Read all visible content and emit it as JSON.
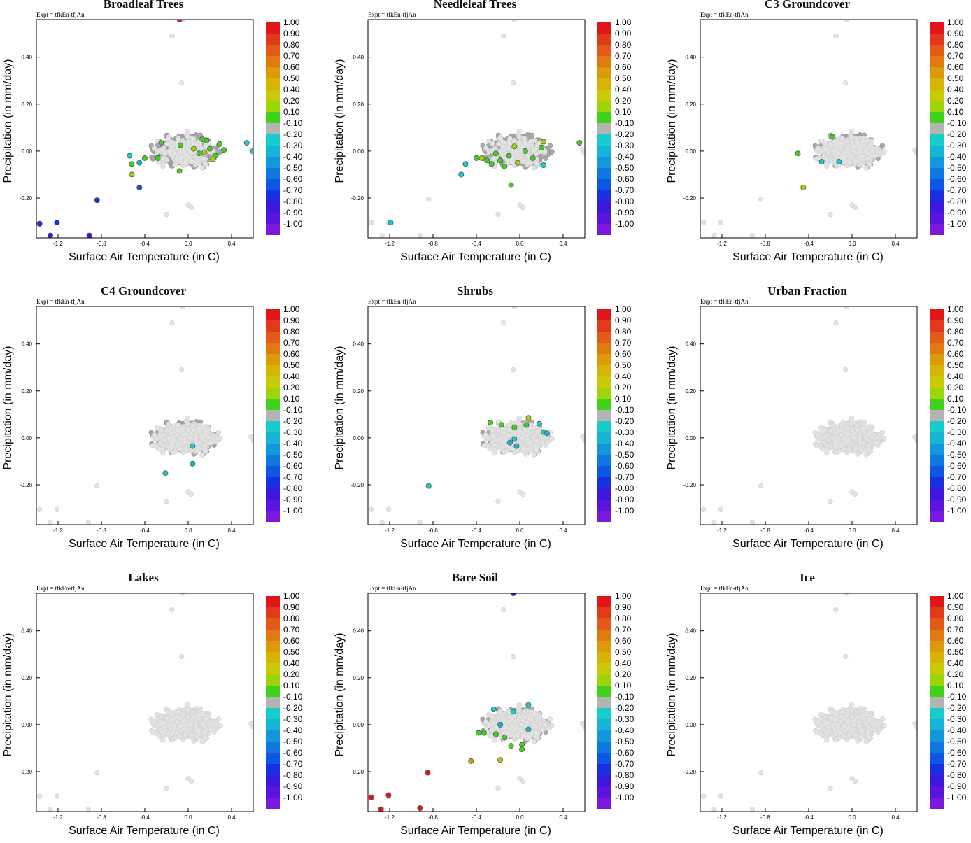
{
  "expt_label": "Expt = tfkEn-tfjAn",
  "xlabel": "Surface Air Temperature (in C)",
  "ylabel": "Precipitation (in mm/day)",
  "colorbar": {
    "labels": [
      "1.00",
      "0.90",
      "0.80",
      "0.70",
      "0.60",
      "0.50",
      "0.40",
      "0.20",
      "0.10",
      "-0.10",
      "-0.20",
      "-0.30",
      "-0.40",
      "-0.50",
      "-0.60",
      "-0.70",
      "-0.80",
      "-0.90",
      "-1.00"
    ],
    "colors": [
      "#e0161a",
      "#e2391a",
      "#e35a18",
      "#e07a10",
      "#dc9a08",
      "#d6b304",
      "#c9cb06",
      "#9ed40a",
      "#3fd21a",
      "#b4b4b4",
      "#18cccc",
      "#16b4d6",
      "#1296dc",
      "#0f78e0",
      "#0c58e2",
      "#1a2ee2",
      "#3c18dc",
      "#5a14dc",
      "#7a18dc"
    ]
  },
  "chart_data": [
    {
      "type": "scatter",
      "title": "Broadleaf Trees",
      "xlim": [
        -1.4,
        0.6
      ],
      "ylim": [
        -0.37,
        0.56
      ],
      "xticks": [
        "-1.2",
        "-0.8",
        "-0.4",
        "0.0",
        "0.4"
      ],
      "yticks": [
        "-0.20",
        "0.00",
        "0.20",
        "0.40"
      ],
      "grid": false,
      "highlight": [
        {
          "x": -0.08,
          "y": 0.56,
          "c": "#e0161a"
        },
        {
          "x": -1.37,
          "y": -0.31,
          "c": "#5a14dc"
        },
        {
          "x": -1.27,
          "y": -0.36,
          "c": "#3c18dc"
        },
        {
          "x": -1.21,
          "y": -0.305,
          "c": "#1a2ee2"
        },
        {
          "x": -0.91,
          "y": -0.36,
          "c": "#3c18dc"
        },
        {
          "x": -0.84,
          "y": -0.21,
          "c": "#1a2ee2"
        },
        {
          "x": -0.45,
          "y": -0.155,
          "c": "#0c58e2"
        },
        {
          "x": -0.52,
          "y": -0.1,
          "c": "#9ed40a"
        },
        {
          "x": -0.52,
          "y": -0.055,
          "c": "#3fd21a"
        },
        {
          "x": -0.4,
          "y": -0.03,
          "c": "#3fd21a"
        },
        {
          "x": -0.28,
          "y": -0.03,
          "c": "#3fd21a"
        },
        {
          "x": -0.25,
          "y": 0.035,
          "c": "#3fd21a"
        },
        {
          "x": -0.07,
          "y": 0.025,
          "c": "#3fd21a"
        },
        {
          "x": 0.05,
          "y": 0.01,
          "c": "#9ed40a"
        },
        {
          "x": 0.1,
          "y": -0.01,
          "c": "#3fd21a"
        },
        {
          "x": 0.13,
          "y": 0.05,
          "c": "#3fd21a"
        },
        {
          "x": 0.17,
          "y": 0.045,
          "c": "#3fd21a"
        },
        {
          "x": 0.2,
          "y": 0.01,
          "c": "#3fd21a"
        },
        {
          "x": 0.25,
          "y": -0.02,
          "c": "#3fd21a"
        },
        {
          "x": 0.29,
          "y": 0.03,
          "c": "#3fd21a"
        },
        {
          "x": 0.33,
          "y": 0.005,
          "c": "#3fd21a"
        },
        {
          "x": 0.15,
          "y": -0.005,
          "c": "#9ed40a"
        },
        {
          "x": 0.23,
          "y": -0.035,
          "c": "#9ed40a"
        },
        {
          "x": -0.08,
          "y": -0.085,
          "c": "#3fd21a"
        },
        {
          "x": 0.54,
          "y": 0.035,
          "c": "#18cccc"
        },
        {
          "x": 0.6,
          "y": 0.0,
          "c": "#18cccc"
        },
        {
          "x": -0.54,
          "y": -0.02,
          "c": "#18cccc"
        },
        {
          "x": -0.45,
          "y": -0.05,
          "c": "#16b4d6"
        }
      ]
    },
    {
      "type": "scatter",
      "title": "Needleleaf Trees",
      "xlim": [
        -1.4,
        0.6
      ],
      "ylim": [
        -0.37,
        0.56
      ],
      "xticks": [
        "-1.2",
        "-0.8",
        "-0.4",
        "0.0",
        "0.4"
      ],
      "yticks": [
        "-0.20",
        "0.00",
        "0.20",
        "0.40"
      ],
      "grid": false,
      "highlight": [
        {
          "x": -1.19,
          "y": -0.305,
          "c": "#18cccc"
        },
        {
          "x": -0.54,
          "y": -0.1,
          "c": "#18cccc"
        },
        {
          "x": -0.5,
          "y": -0.055,
          "c": "#18cccc"
        },
        {
          "x": 0.22,
          "y": -0.06,
          "c": "#18cccc"
        },
        {
          "x": -0.4,
          "y": -0.03,
          "c": "#3fd21a"
        },
        {
          "x": -0.35,
          "y": -0.03,
          "c": "#9ed40a"
        },
        {
          "x": -0.3,
          "y": -0.04,
          "c": "#3fd21a"
        },
        {
          "x": -0.22,
          "y": -0.01,
          "c": "#3fd21a"
        },
        {
          "x": -0.18,
          "y": -0.04,
          "c": "#3fd21a"
        },
        {
          "x": -0.1,
          "y": -0.02,
          "c": "#3fd21a"
        },
        {
          "x": -0.05,
          "y": 0.02,
          "c": "#9ed40a"
        },
        {
          "x": 0.05,
          "y": 0.0,
          "c": "#3fd21a"
        },
        {
          "x": 0.12,
          "y": -0.03,
          "c": "#3fd21a"
        },
        {
          "x": 0.2,
          "y": 0.015,
          "c": "#3fd21a"
        },
        {
          "x": 0.22,
          "y": 0.04,
          "c": "#9ed40a"
        },
        {
          "x": 0.55,
          "y": 0.035,
          "c": "#3fd21a"
        },
        {
          "x": -0.26,
          "y": -0.055,
          "c": "#3fd21a"
        },
        {
          "x": -0.14,
          "y": -0.065,
          "c": "#3fd21a"
        },
        {
          "x": -0.08,
          "y": -0.145,
          "c": "#3fd21a"
        },
        {
          "x": -0.02,
          "y": -0.05,
          "c": "#9ed40a"
        }
      ]
    },
    {
      "type": "scatter",
      "title": "C3 Groundcover",
      "xlim": [
        -1.4,
        0.6
      ],
      "ylim": [
        -0.37,
        0.56
      ],
      "xticks": [
        "-1.2",
        "-0.8",
        "-0.4",
        "0.0",
        "0.4"
      ],
      "yticks": [
        "-0.20",
        "0.00",
        "0.20",
        "0.40"
      ],
      "grid": false,
      "highlight": [
        {
          "x": -0.5,
          "y": -0.01,
          "c": "#3fd21a"
        },
        {
          "x": -0.45,
          "y": -0.155,
          "c": "#9ed40a"
        },
        {
          "x": -0.18,
          "y": 0.06,
          "c": "#3fd21a"
        },
        {
          "x": -0.12,
          "y": -0.045,
          "c": "#18cccc"
        },
        {
          "x": -0.28,
          "y": -0.045,
          "c": "#18cccc"
        }
      ]
    },
    {
      "type": "scatter",
      "title": "C4 Groundcover",
      "xlim": [
        -1.4,
        0.6
      ],
      "ylim": [
        -0.37,
        0.56
      ],
      "xticks": [
        "-1.2",
        "-0.8",
        "-0.4",
        "0.0",
        "0.4"
      ],
      "yticks": [
        "-0.20",
        "0.00",
        "0.20",
        "0.40"
      ],
      "grid": false,
      "highlight": [
        {
          "x": -0.21,
          "y": -0.15,
          "c": "#18cccc"
        },
        {
          "x": 0.04,
          "y": -0.11,
          "c": "#16b4d6"
        },
        {
          "x": 0.04,
          "y": -0.035,
          "c": "#18cccc"
        }
      ]
    },
    {
      "type": "scatter",
      "title": "Shrubs",
      "xlim": [
        -1.4,
        0.6
      ],
      "ylim": [
        -0.37,
        0.56
      ],
      "xticks": [
        "-1.2",
        "-0.8",
        "-0.4",
        "0.0",
        "0.4"
      ],
      "yticks": [
        "-0.20",
        "0.00",
        "0.20",
        "0.40"
      ],
      "grid": false,
      "highlight": [
        {
          "x": -0.84,
          "y": -0.205,
          "c": "#18cccc"
        },
        {
          "x": -0.27,
          "y": 0.065,
          "c": "#3fd21a"
        },
        {
          "x": -0.17,
          "y": 0.055,
          "c": "#3fd21a"
        },
        {
          "x": -0.05,
          "y": 0.045,
          "c": "#3fd21a"
        },
        {
          "x": 0.06,
          "y": 0.055,
          "c": "#3fd21a"
        },
        {
          "x": 0.08,
          "y": 0.085,
          "c": "#9ed40a"
        },
        {
          "x": -0.09,
          "y": -0.02,
          "c": "#16b4d6"
        },
        {
          "x": -0.05,
          "y": -0.005,
          "c": "#18cccc"
        },
        {
          "x": 0.22,
          "y": 0.025,
          "c": "#18cccc"
        },
        {
          "x": 0.18,
          "y": 0.06,
          "c": "#18cccc"
        },
        {
          "x": -0.03,
          "y": -0.035,
          "c": "#16b4d6"
        },
        {
          "x": 0.25,
          "y": 0.02,
          "c": "#16b4d6"
        }
      ]
    },
    {
      "type": "scatter",
      "title": "Urban Fraction",
      "xlim": [
        -1.4,
        0.6
      ],
      "ylim": [
        -0.37,
        0.56
      ],
      "xticks": [
        "-1.2",
        "-0.8",
        "-0.4",
        "0.0",
        "0.4"
      ],
      "yticks": [
        "-0.20",
        "0.00",
        "0.20",
        "0.40"
      ],
      "grid": false,
      "highlight": []
    },
    {
      "type": "scatter",
      "title": "Lakes",
      "xlim": [
        -1.4,
        0.6
      ],
      "ylim": [
        -0.37,
        0.56
      ],
      "xticks": [
        "-1.2",
        "-0.8",
        "-0.4",
        "0.0",
        "0.4"
      ],
      "yticks": [
        "-0.20",
        "0.00",
        "0.20",
        "0.40"
      ],
      "grid": false,
      "highlight": []
    },
    {
      "type": "scatter",
      "title": "Bare Soil",
      "xlim": [
        -1.4,
        0.6
      ],
      "ylim": [
        -0.37,
        0.56
      ],
      "xticks": [
        "-1.2",
        "-0.8",
        "-0.4",
        "0.0",
        "0.4"
      ],
      "yticks": [
        "-0.20",
        "0.00",
        "0.20",
        "0.40"
      ],
      "grid": false,
      "highlight": [
        {
          "x": -0.06,
          "y": 0.56,
          "c": "#3c18dc"
        },
        {
          "x": -1.37,
          "y": -0.31,
          "c": "#e0161a"
        },
        {
          "x": -1.28,
          "y": -0.36,
          "c": "#e0161a"
        },
        {
          "x": -1.21,
          "y": -0.3,
          "c": "#e0161a"
        },
        {
          "x": -0.92,
          "y": -0.355,
          "c": "#e0161a"
        },
        {
          "x": -0.85,
          "y": -0.205,
          "c": "#e0161a"
        },
        {
          "x": -0.45,
          "y": -0.155,
          "c": "#dc9a08"
        },
        {
          "x": -0.18,
          "y": -0.15,
          "c": "#9ed40a"
        },
        {
          "x": -0.38,
          "y": -0.035,
          "c": "#3fd21a"
        },
        {
          "x": -0.33,
          "y": -0.035,
          "c": "#3fd21a"
        },
        {
          "x": -0.22,
          "y": -0.04,
          "c": "#3fd21a"
        },
        {
          "x": -0.14,
          "y": -0.055,
          "c": "#3fd21a"
        },
        {
          "x": -0.08,
          "y": -0.09,
          "c": "#3fd21a"
        },
        {
          "x": 0.02,
          "y": -0.085,
          "c": "#3fd21a"
        },
        {
          "x": 0.02,
          "y": -0.105,
          "c": "#3fd21a"
        },
        {
          "x": -0.24,
          "y": 0.065,
          "c": "#18cccc"
        },
        {
          "x": -0.06,
          "y": 0.055,
          "c": "#18cccc"
        },
        {
          "x": 0.08,
          "y": 0.085,
          "c": "#18cccc"
        },
        {
          "x": -0.18,
          "y": 0.0,
          "c": "#16b4d6"
        },
        {
          "x": 0.08,
          "y": -0.02,
          "c": "#16b4d6"
        }
      ]
    },
    {
      "type": "scatter",
      "title": "Ice",
      "xlim": [
        -1.4,
        0.6
      ],
      "ylim": [
        -0.37,
        0.56
      ],
      "xticks": [
        "-1.2",
        "-0.8",
        "-0.4",
        "0.0",
        "0.4"
      ],
      "yticks": [
        "-0.20",
        "0.00",
        "0.20",
        "0.40"
      ],
      "grid": false,
      "highlight": []
    }
  ]
}
